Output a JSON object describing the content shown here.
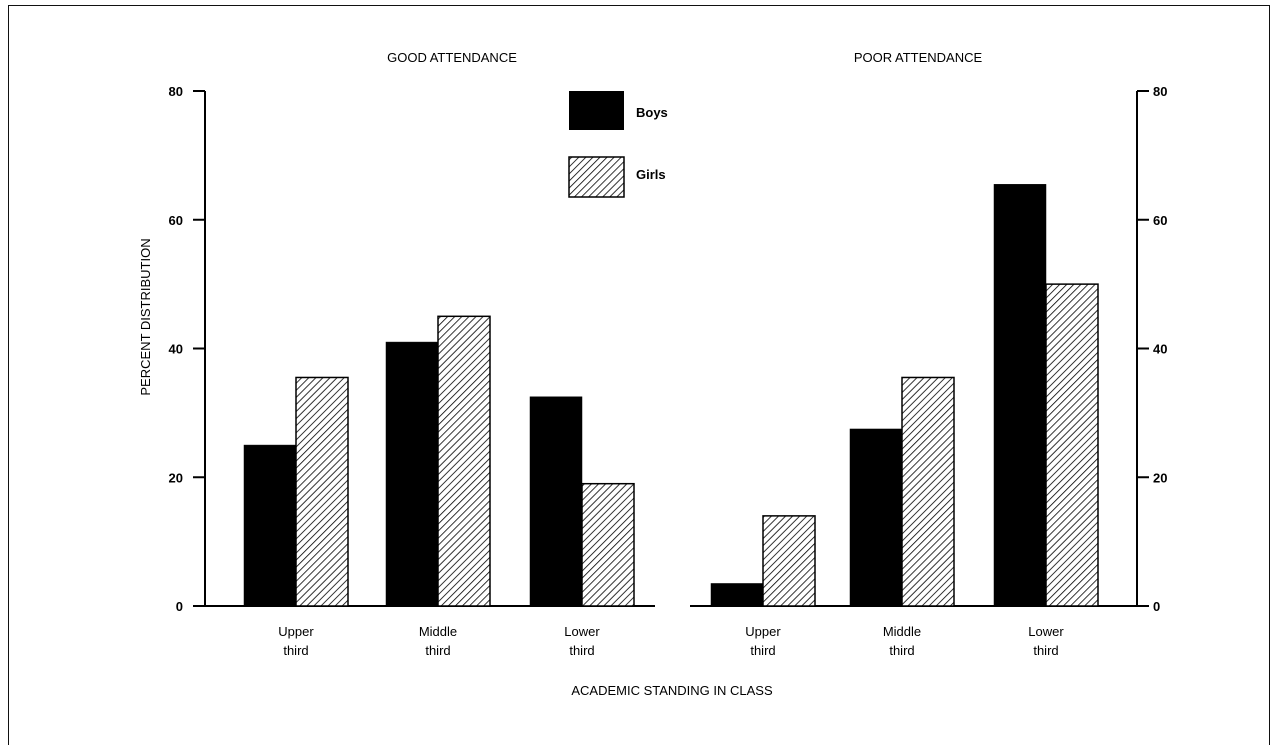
{
  "chart_data": {
    "type": "bar",
    "panels": [
      {
        "title": "GOOD ATTENDANCE",
        "categories": [
          [
            "Upper",
            "third"
          ],
          [
            "Middle",
            "third"
          ],
          [
            "Lower",
            "third"
          ]
        ],
        "series": [
          {
            "name": "Boys",
            "values": [
              25,
              41,
              32.5
            ]
          },
          {
            "name": "Girls",
            "values": [
              35.5,
              45,
              19
            ]
          }
        ]
      },
      {
        "title": "POOR ATTENDANCE",
        "categories": [
          [
            "Upper",
            "third"
          ],
          [
            "Middle",
            "third"
          ],
          [
            "Lower",
            "third"
          ]
        ],
        "series": [
          {
            "name": "Boys",
            "values": [
              3.5,
              27.5,
              65.5
            ]
          },
          {
            "name": "Girls",
            "values": [
              14,
              35.5,
              50
            ]
          }
        ]
      }
    ],
    "ylabel": "PERCENT DISTRIBUTION",
    "xlabel": "ACADEMIC STANDING IN CLASS",
    "ylim": [
      0,
      80
    ],
    "yticks": [
      0,
      20,
      40,
      60,
      80
    ],
    "y_axis_sides": "both",
    "legend": {
      "position": "top-center",
      "items": [
        {
          "name": "Boys",
          "fill": "solid-black"
        },
        {
          "name": "Girls",
          "fill": "diagonal-hatch"
        }
      ]
    },
    "grid": false,
    "colors": {
      "boys": "#000000",
      "girls_hatch": "#000000",
      "background": "#ffffff"
    }
  }
}
